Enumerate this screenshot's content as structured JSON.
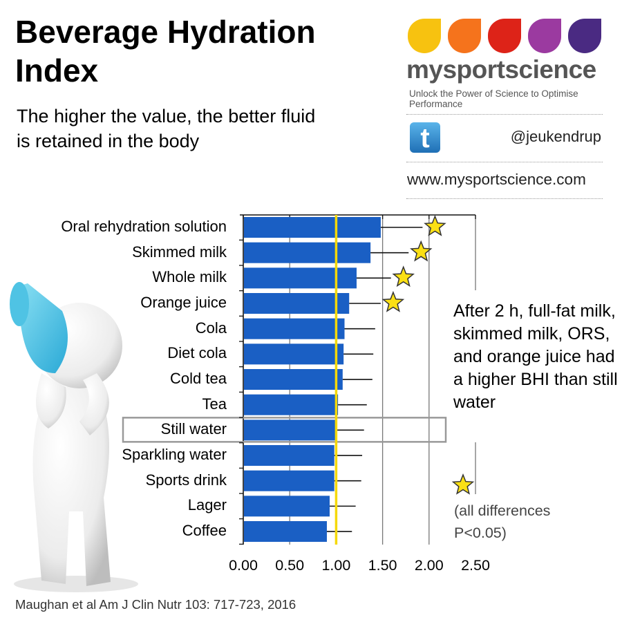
{
  "title": "Beverage Hydration Index",
  "subtitle": "The higher the value, the better fluid is retained in the body",
  "brand": {
    "name": "mysportscience",
    "tagline": "Unlock the Power of Science to Optimise Performance",
    "twitter_handle": "@jeukendrup",
    "website": "www.mysportscience.com",
    "drop_colors": [
      "#f7c210",
      "#f5731c",
      "#dd2318",
      "#9b3aa0",
      "#4a2a82"
    ],
    "icons": [
      "twitter-icon"
    ]
  },
  "chart_data": {
    "type": "bar",
    "orientation": "horizontal",
    "categories": [
      "Oral rehydration solution",
      "Skimmed milk",
      "Whole milk",
      "Orange juice",
      "Cola",
      "Diet cola",
      "Cold tea",
      "Tea",
      "Still water",
      "Sparkling water",
      "Sports drink",
      "Lager",
      "Coffee"
    ],
    "values": [
      1.48,
      1.37,
      1.22,
      1.14,
      1.09,
      1.08,
      1.07,
      1.02,
      1.0,
      0.98,
      0.98,
      0.93,
      0.9
    ],
    "error_upper": [
      1.93,
      1.78,
      1.59,
      1.48,
      1.42,
      1.4,
      1.39,
      1.33,
      1.3,
      1.28,
      1.27,
      1.21,
      1.17
    ],
    "significant": [
      true,
      true,
      true,
      true,
      false,
      false,
      false,
      false,
      false,
      false,
      false,
      false,
      false
    ],
    "reference_category": "Still water",
    "reference_line": 1.0,
    "xlim": [
      0,
      2.5
    ],
    "xticks": [
      "0.00",
      "0.50",
      "1.00",
      "1.50",
      "2.00",
      "2.50"
    ],
    "grid": true,
    "colors": {
      "bar": "#1a5fc4",
      "reference_line": "#f5d90a",
      "star": "#fbe014"
    },
    "annotation": "After 2 h, full-fat milk, skimmed milk, ORS, and orange juice had a higher BHI than still water",
    "legend_text": "(all differences P<0.05)",
    "legend_placement": "bottom-right"
  },
  "citation": "Maughan et al Am J Clin Nutr 103: 717-723, 2016"
}
